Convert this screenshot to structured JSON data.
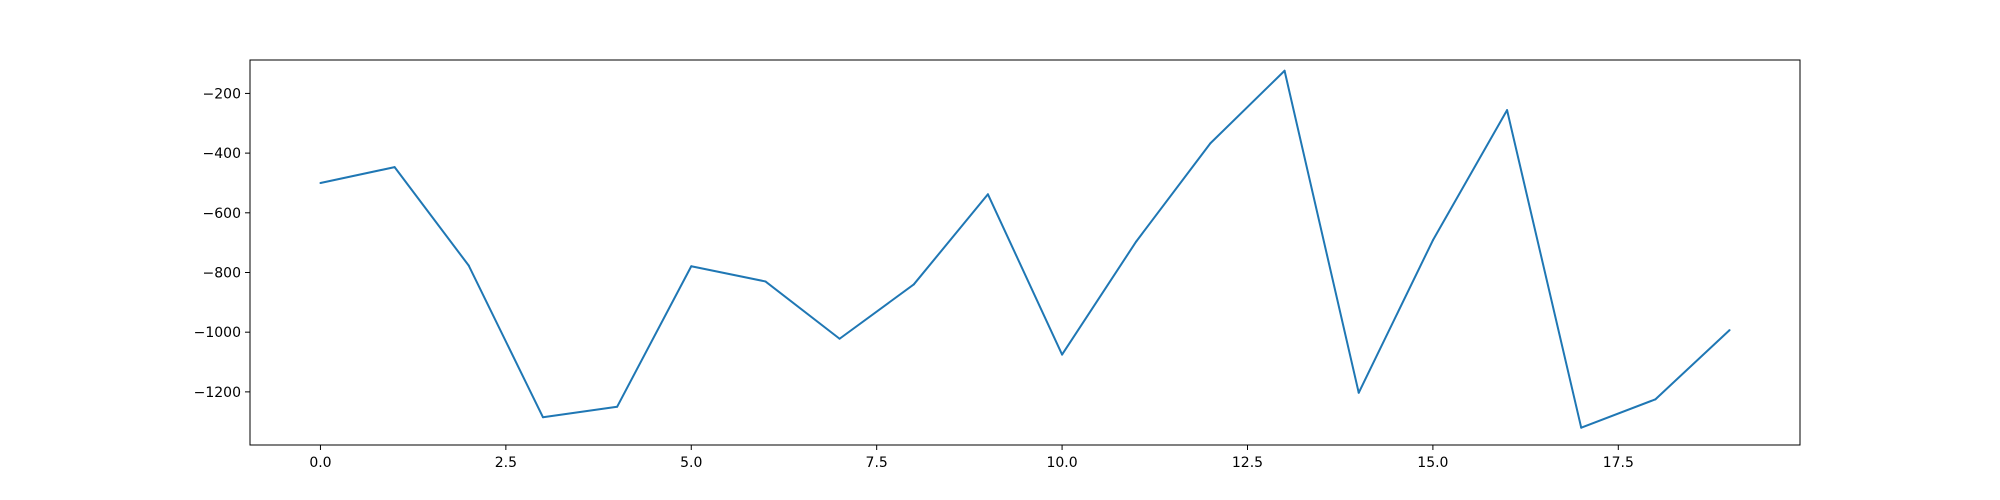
{
  "chart_data": {
    "type": "line",
    "title": "",
    "xlabel": "",
    "ylabel": "",
    "xlim": [
      -0.95,
      19.95
    ],
    "ylim": [
      -1378,
      -88
    ],
    "grid": false,
    "x_ticks": [
      0.0,
      2.5,
      5.0,
      7.5,
      10.0,
      12.5,
      15.0,
      17.5
    ],
    "x_tick_labels": [
      "0.0",
      "2.5",
      "5.0",
      "7.5",
      "10.0",
      "12.5",
      "15.0",
      "17.5"
    ],
    "y_ticks": [
      -200,
      -400,
      -600,
      -800,
      -1000,
      -1200
    ],
    "y_tick_labels": [
      "−200",
      "−400",
      "−600",
      "−800",
      "−1000",
      "−1200"
    ],
    "series": [
      {
        "color": "#1f77b4",
        "x": [
          0,
          1,
          2,
          3,
          4,
          5,
          6,
          7,
          8,
          9,
          10,
          11,
          12,
          13,
          14,
          15,
          16,
          17,
          18,
          19
        ],
        "values": [
          -500,
          -447,
          -777,
          -1285,
          -1250,
          -779,
          -830,
          -1022,
          -840,
          -538,
          -1075,
          -696,
          -367,
          -124,
          -1203,
          -692,
          -256,
          -1320,
          -1225,
          -993
        ]
      }
    ]
  }
}
